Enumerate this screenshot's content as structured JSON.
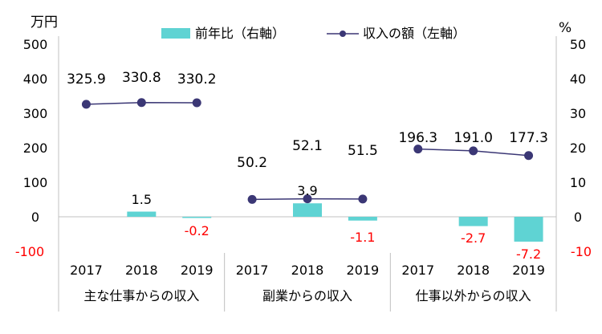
{
  "chart_data": {
    "type": "bar+line",
    "y_left": {
      "unit": "万円",
      "ticks": [
        "500",
        "400",
        "300",
        "200",
        "100",
        "0",
        "-100"
      ],
      "range": [
        -100,
        500
      ]
    },
    "y_right": {
      "unit": "%",
      "ticks": [
        "50",
        "40",
        "30",
        "20",
        "10",
        "0",
        "-10"
      ],
      "range": [
        -10,
        50
      ]
    },
    "groups": [
      {
        "name": "主な仕事からの収入",
        "years": [
          "2017",
          "2018",
          "2019"
        ]
      },
      {
        "name": "副業からの収入",
        "years": [
          "2017",
          "2018",
          "2019"
        ]
      },
      {
        "name": "仕事以外からの収入",
        "years": [
          "2017",
          "2018",
          "2019"
        ]
      }
    ],
    "series": [
      {
        "name": "前年比（右軸）",
        "type": "bar",
        "axis": "right",
        "color": "#5fd3d3",
        "values": [
          null,
          1.5,
          -0.2,
          null,
          3.9,
          -1.1,
          null,
          -2.7,
          -7.2
        ],
        "labels": [
          "",
          "1.5",
          "-0.2",
          "",
          "3.9",
          "-1.1",
          "",
          "-2.7",
          "-7.2"
        ]
      },
      {
        "name": "収入の額（左軸）",
        "type": "line",
        "axis": "left",
        "color": "#3b3775",
        "values": [
          325.9,
          330.8,
          330.2,
          50.2,
          52.1,
          51.5,
          196.3,
          191.0,
          177.3
        ],
        "labels": [
          "325.9",
          "330.8",
          "330.2",
          "50.2",
          "52.1",
          "51.5",
          "196.3",
          "191.0",
          "177.3"
        ]
      }
    ],
    "legend_position": "top",
    "negative_label_color": "#ff0000",
    "grid": false
  }
}
